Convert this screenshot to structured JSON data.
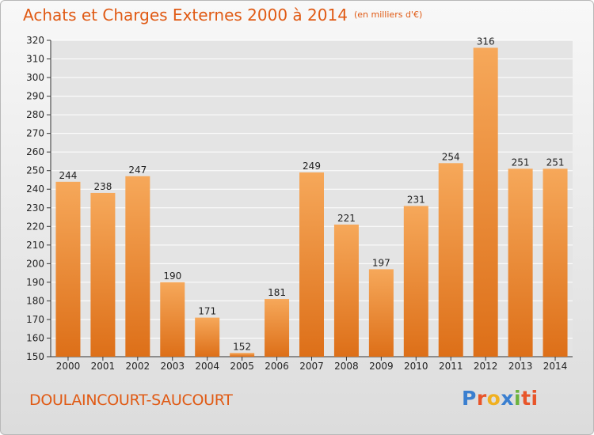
{
  "title": "Achats et Charges Externes 2000 à 2014",
  "unit": "(en milliers d'€)",
  "commune": "DOULAINCOURT-SAUCOURT",
  "logo_letters": [
    "P",
    "r",
    "o",
    "x",
    "i",
    "ti"
  ],
  "colors": {
    "bar": "#f08a2c",
    "bar_light": "#f6a85a",
    "title": "#e05a14",
    "grid": "#ffffff"
  },
  "chart_data": {
    "type": "bar",
    "categories": [
      "2000",
      "2001",
      "2002",
      "2003",
      "2004",
      "2005",
      "2006",
      "2007",
      "2008",
      "2009",
      "2010",
      "2011",
      "2012",
      "2013",
      "2014"
    ],
    "values": [
      244,
      238,
      247,
      190,
      171,
      152,
      181,
      249,
      221,
      197,
      231,
      254,
      316,
      251,
      251
    ],
    "ylim": [
      150,
      320
    ],
    "yticks": [
      150,
      160,
      170,
      180,
      190,
      200,
      210,
      220,
      230,
      240,
      250,
      260,
      270,
      280,
      290,
      300,
      310,
      320
    ],
    "grid": true
  }
}
